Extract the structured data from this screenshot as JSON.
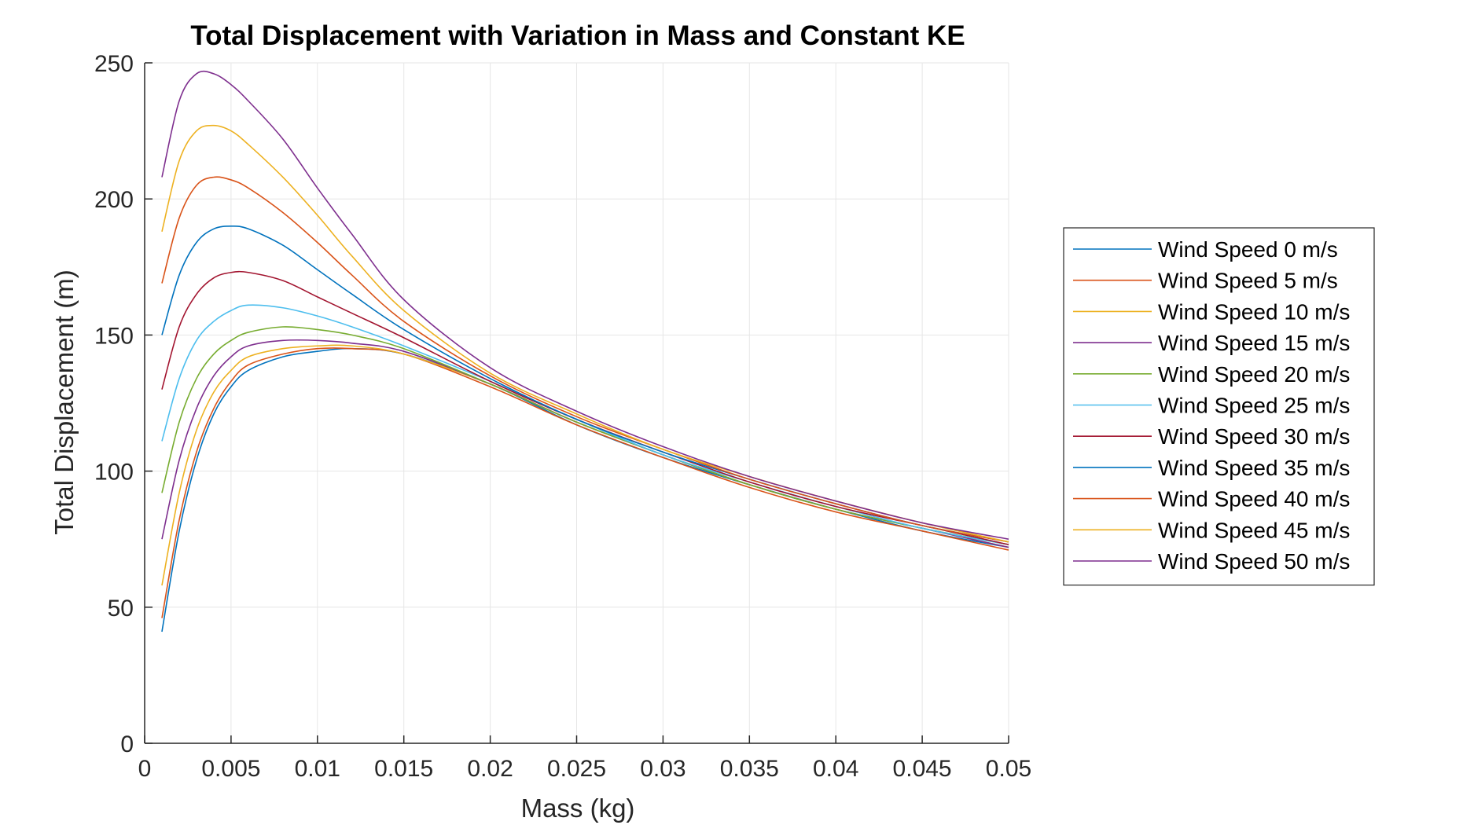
{
  "chart_data": {
    "type": "line",
    "title": "Total Displacement with Variation in Mass and Constant KE",
    "xlabel": "Mass (kg)",
    "ylabel": "Total Displacement (m)",
    "xlim": [
      0,
      0.05
    ],
    "ylim": [
      0,
      250
    ],
    "xticks": [
      0,
      0.005,
      0.01,
      0.015,
      0.02,
      0.025,
      0.03,
      0.035,
      0.04,
      0.045,
      0.05
    ],
    "xtick_labels": [
      "0",
      "0.005",
      "0.01",
      "0.015",
      "0.02",
      "0.025",
      "0.03",
      "0.035",
      "0.04",
      "0.045",
      "0.05"
    ],
    "yticks": [
      0,
      50,
      100,
      150,
      200,
      250
    ],
    "ytick_labels": [
      "0",
      "50",
      "100",
      "150",
      "200",
      "250"
    ],
    "grid": true,
    "legend_position": "outside-right",
    "x": [
      0.001,
      0.002,
      0.003,
      0.004,
      0.005,
      0.006,
      0.008,
      0.01,
      0.012,
      0.015,
      0.02,
      0.025,
      0.03,
      0.035,
      0.04,
      0.045,
      0.05
    ],
    "series": [
      {
        "name": "Wind Speed 0 m/s",
        "color": "#0072BD",
        "values": [
          41,
          78,
          104,
          121,
          131,
          137,
          142,
          144,
          145,
          143,
          132,
          117,
          105,
          95,
          86,
          78,
          72
        ]
      },
      {
        "name": "Wind Speed 5 m/s",
        "color": "#D95319",
        "values": [
          46,
          82,
          107,
          123,
          133,
          139,
          143,
          145,
          145,
          143,
          131,
          117,
          105,
          94,
          85,
          78,
          71
        ]
      },
      {
        "name": "Wind Speed 10 m/s",
        "color": "#EDB120",
        "values": [
          58,
          92,
          115,
          129,
          137,
          142,
          145,
          146,
          146,
          143,
          132,
          118,
          106,
          95,
          86,
          79,
          72
        ]
      },
      {
        "name": "Wind Speed 15 m/s",
        "color": "#7E2F8E",
        "values": [
          75,
          104,
          123,
          135,
          142,
          146,
          148,
          148,
          147,
          144,
          132,
          118,
          106,
          95,
          86,
          79,
          72
        ]
      },
      {
        "name": "Wind Speed 20 m/s",
        "color": "#77AC30",
        "values": [
          92,
          118,
          134,
          143,
          148,
          151,
          153,
          152,
          150,
          145,
          132,
          118,
          106,
          95,
          86,
          79,
          73
        ]
      },
      {
        "name": "Wind Speed 25 m/s",
        "color": "#4DBEEE",
        "values": [
          111,
          134,
          148,
          155,
          159,
          161,
          160,
          157,
          153,
          146,
          133,
          119,
          106,
          96,
          87,
          79,
          73
        ]
      },
      {
        "name": "Wind Speed 30 m/s",
        "color": "#A2142F",
        "values": [
          130,
          153,
          165,
          171,
          173,
          173,
          170,
          164,
          158,
          149,
          133,
          119,
          107,
          96,
          87,
          80,
          73
        ]
      },
      {
        "name": "Wind Speed 35 m/s",
        "color": "#0072BD",
        "values": [
          150,
          172,
          184,
          189,
          190,
          189,
          183,
          174,
          165,
          152,
          134,
          119,
          107,
          97,
          88,
          80,
          74
        ]
      },
      {
        "name": "Wind Speed 40 m/s",
        "color": "#D95319",
        "values": [
          169,
          193,
          205,
          208,
          207,
          204,
          195,
          184,
          172,
          155,
          135,
          120,
          108,
          97,
          88,
          80,
          74
        ]
      },
      {
        "name": "Wind Speed 45 m/s",
        "color": "#EDB120",
        "values": [
          188,
          214,
          225,
          227,
          225,
          220,
          208,
          194,
          179,
          159,
          136,
          121,
          108,
          98,
          89,
          81,
          74
        ]
      },
      {
        "name": "Wind Speed 50 m/s",
        "color": "#7E2F8E",
        "values": [
          208,
          236,
          246,
          246,
          242,
          236,
          222,
          204,
          187,
          163,
          138,
          122,
          109,
          98,
          89,
          81,
          75
        ]
      }
    ]
  }
}
